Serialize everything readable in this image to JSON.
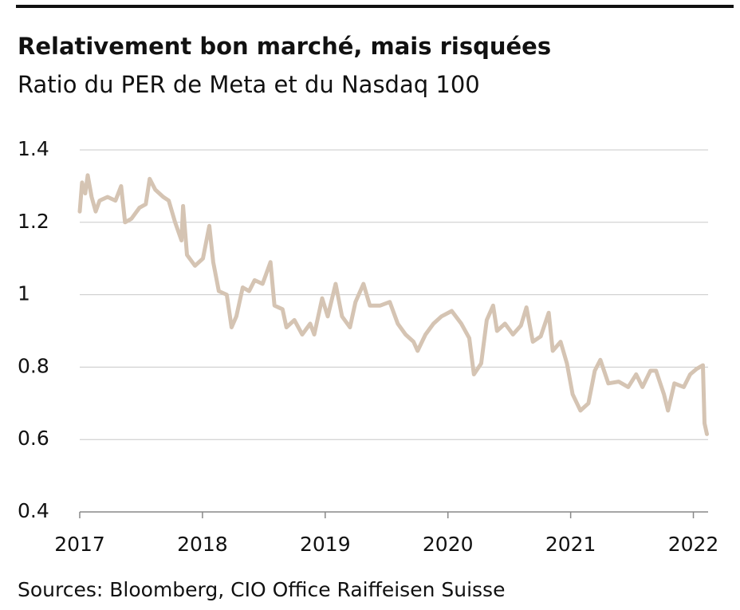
{
  "chart_data": {
    "type": "line",
    "title": "Relativement bon marché, mais risquées",
    "subtitle": "Ratio du PER de Meta et du Nasdaq 100",
    "source": "Sources: Bloomberg, CIO Office Raiffeisen Suisse",
    "x": [
      2017.0,
      2017.019,
      2017.045,
      2017.065,
      2017.097,
      2017.13,
      2017.162,
      2017.227,
      2017.291,
      2017.337,
      2017.369,
      2017.421,
      2017.486,
      2017.538,
      2017.57,
      2017.615,
      2017.68,
      2017.725,
      2017.777,
      2017.829,
      2017.842,
      2017.874,
      2017.939,
      2018.004,
      2018.056,
      2018.088,
      2018.133,
      2018.198,
      2018.237,
      2018.276,
      2018.328,
      2018.38,
      2018.425,
      2018.49,
      2018.554,
      2018.587,
      2018.652,
      2018.684,
      2018.749,
      2018.813,
      2018.878,
      2018.911,
      2018.975,
      2019.021,
      2019.085,
      2019.137,
      2019.202,
      2019.247,
      2019.312,
      2019.364,
      2019.448,
      2019.526,
      2019.591,
      2019.655,
      2019.72,
      2019.753,
      2019.817,
      2019.882,
      2019.947,
      2020.031,
      2020.109,
      2020.174,
      2020.212,
      2020.271,
      2020.316,
      2020.368,
      2020.4,
      2020.465,
      2020.53,
      2020.595,
      2020.64,
      2020.692,
      2020.756,
      2020.821,
      2020.854,
      2020.918,
      2020.97,
      2021.016,
      2021.08,
      2021.145,
      2021.197,
      2021.242,
      2021.307,
      2021.391,
      2021.469,
      2021.534,
      2021.585,
      2021.65,
      2021.696,
      2021.76,
      2021.793,
      2021.845,
      2021.922,
      2021.974,
      2022.026,
      2022.078,
      2022.091,
      2022.11
    ],
    "series": [
      {
        "name": "Ratio PER Meta / Nasdaq 100",
        "color": "#d5c4b3",
        "values": [
          1.23,
          1.31,
          1.28,
          1.33,
          1.27,
          1.23,
          1.26,
          1.27,
          1.26,
          1.3,
          1.2,
          1.21,
          1.24,
          1.25,
          1.32,
          1.29,
          1.27,
          1.26,
          1.2,
          1.15,
          1.245,
          1.11,
          1.08,
          1.1,
          1.19,
          1.09,
          1.01,
          1.0,
          0.91,
          0.94,
          1.02,
          1.01,
          1.04,
          1.03,
          1.09,
          0.97,
          0.96,
          0.91,
          0.93,
          0.89,
          0.92,
          0.89,
          0.99,
          0.94,
          1.03,
          0.94,
          0.91,
          0.98,
          1.03,
          0.97,
          0.97,
          0.98,
          0.92,
          0.89,
          0.87,
          0.845,
          0.89,
          0.92,
          0.94,
          0.955,
          0.92,
          0.88,
          0.78,
          0.81,
          0.93,
          0.97,
          0.9,
          0.92,
          0.89,
          0.915,
          0.965,
          0.87,
          0.885,
          0.95,
          0.845,
          0.87,
          0.81,
          0.725,
          0.68,
          0.7,
          0.79,
          0.82,
          0.755,
          0.76,
          0.745,
          0.78,
          0.745,
          0.79,
          0.79,
          0.725,
          0.68,
          0.755,
          0.745,
          0.78,
          0.795,
          0.805,
          0.645,
          0.615
        ]
      }
    ],
    "xlim": [
      2017,
      2022.12
    ],
    "xticks": [
      2017,
      2018,
      2019,
      2020,
      2021,
      2022
    ],
    "ylim": [
      0.4,
      1.4
    ],
    "yticks": [
      0.4,
      0.6,
      0.8,
      1.0,
      1.2,
      1.4
    ],
    "grid": true
  }
}
